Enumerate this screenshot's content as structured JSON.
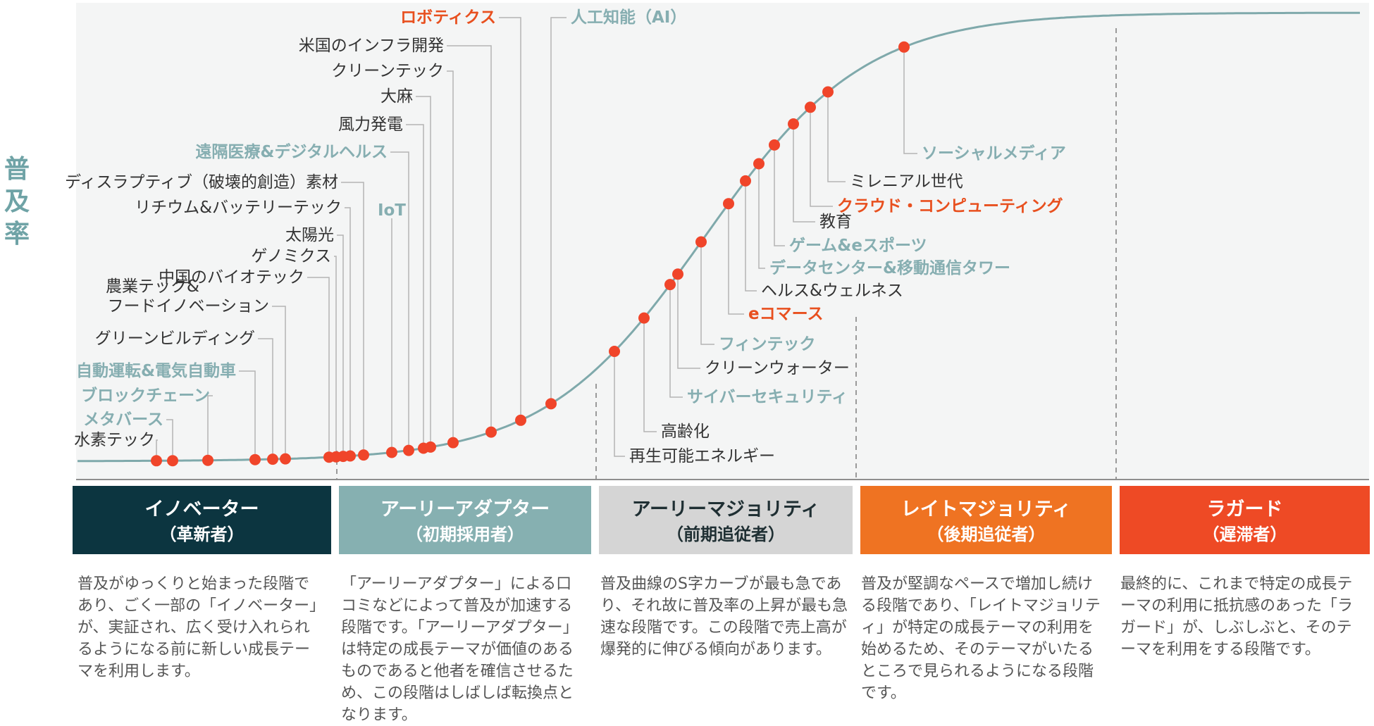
{
  "colors": {
    "curve": "#7fa9ab",
    "dot": "#f0452a",
    "accent_orange": "#e8501f",
    "muted_teal": "#86aeb1",
    "label_dark": "#333333",
    "leader": "#b4b4b4",
    "band_bg": "#f4f5f5",
    "stage_innovators": "#0c3540",
    "stage_early_adopters": "#86b0b1",
    "stage_early_majority": "#d5d5d5",
    "stage_late_majority": "#ef7322",
    "stage_laggards": "#ee4a25"
  },
  "y_axis_label": [
    "普",
    "及",
    "率"
  ],
  "stages": [
    {
      "title": "イノベーター",
      "subtitle": "（革新者）",
      "description": "普及がゆっくりと始まった段階であり、ごく一部の「イノベーター」が、実証され、広く受け入れられるようになる前に新しい成長テーマを利用します。"
    },
    {
      "title": "アーリーアダプター",
      "subtitle": "（初期採用者）",
      "description": "「アーリーアダプター」による口コミなどによって普及が加速する段階です。「アーリーアダプター」は特定の成長テーマが価値のあるものであると他者を確信させるため、この段階はしばしば転換点となります。"
    },
    {
      "title": "アーリーマジョリティ",
      "subtitle": "（前期追従者）",
      "description": "普及曲線のS字カーブが最も急であり、それ故に普及率の上昇が最も急速な段階です。この段階で売上高が爆発的に伸びる傾向があります。"
    },
    {
      "title": "レイトマジョリティ",
      "subtitle": "（後期追従者）",
      "description": "普及が堅調なペースで増加し続ける段階であり、「レイトマジョリティ」が特定の成長テーマの利用を始めるため、そのテーマがいたるところで見られるようになる段階です。"
    },
    {
      "title": "ラガード",
      "subtitle": "（遅滞者）",
      "description": "最終的に、これまで特定の成長テーマの利用に抵抗感のあった「ラガード」が、しぶしぶと、そのテーマを利用をする段階です。"
    }
  ],
  "chart_data": {
    "type": "scatter",
    "title": "",
    "ylabel": "普及率",
    "stages": [
      "イノベーター",
      "アーリーアダプター",
      "アーリーマジョリティ",
      "レイトマジョリティ",
      "ラガード"
    ],
    "themes": [
      {
        "label": "水素テック",
        "stage": "イノベーター",
        "style": "dark"
      },
      {
        "label": "メタバース",
        "stage": "イノベーター",
        "style": "teal"
      },
      {
        "label": "ブロックチェーン",
        "stage": "イノベーター",
        "style": "teal"
      },
      {
        "label": "自動運転&電気自動車",
        "stage": "イノベーター",
        "style": "teal"
      },
      {
        "label": "グリーンビルディング",
        "stage": "イノベーター",
        "style": "dark"
      },
      {
        "label": "農業テック&フードイノベーション",
        "stage": "イノベーター",
        "style": "dark"
      },
      {
        "label": "中国のバイオテック",
        "stage": "イノベーター",
        "style": "dark"
      },
      {
        "label": "ゲノミクス",
        "stage": "イノベーター",
        "style": "dark"
      },
      {
        "label": "太陽光",
        "stage": "イノベーター",
        "style": "dark"
      },
      {
        "label": "リチウム&バッテリーテック",
        "stage": "アーリーアダプター",
        "style": "dark"
      },
      {
        "label": "ディスラプティブ（破壊的創造）素材",
        "stage": "アーリーアダプター",
        "style": "dark"
      },
      {
        "label": "IoT",
        "stage": "アーリーアダプター",
        "style": "teal"
      },
      {
        "label": "遠隔医療&デジタルヘルス",
        "stage": "アーリーアダプター",
        "style": "teal"
      },
      {
        "label": "風力発電",
        "stage": "アーリーアダプター",
        "style": "dark"
      },
      {
        "label": "大麻",
        "stage": "アーリーアダプター",
        "style": "dark"
      },
      {
        "label": "クリーンテック",
        "stage": "アーリーアダプター",
        "style": "dark"
      },
      {
        "label": "米国のインフラ開発",
        "stage": "アーリーアダプター",
        "style": "dark"
      },
      {
        "label": "ロボティクス",
        "stage": "アーリーアダプター",
        "style": "orange"
      },
      {
        "label": "人工知能（AI）",
        "stage": "アーリーアダプター",
        "style": "teal"
      },
      {
        "label": "再生可能エネルギー",
        "stage": "アーリーマジョリティ",
        "style": "dark"
      },
      {
        "label": "高齢化",
        "stage": "アーリーマジョリティ",
        "style": "dark"
      },
      {
        "label": "サイバーセキュリティ",
        "stage": "アーリーマジョリティ",
        "style": "teal"
      },
      {
        "label": "クリーンウォーター",
        "stage": "アーリーマジョリティ",
        "style": "dark"
      },
      {
        "label": "フィンテック",
        "stage": "アーリーマジョリティ",
        "style": "teal"
      },
      {
        "label": "eコマース",
        "stage": "アーリーマジョリティ",
        "style": "orange"
      },
      {
        "label": "ヘルス&ウェルネス",
        "stage": "アーリーマジョリティ",
        "style": "dark"
      },
      {
        "label": "データセンター&移動通信タワー",
        "stage": "アーリーマジョリティ",
        "style": "teal"
      },
      {
        "label": "ゲーム&eスポーツ",
        "stage": "アーリーマジョリティ",
        "style": "teal"
      },
      {
        "label": "教育",
        "stage": "アーリーマジョリティ",
        "style": "dark"
      },
      {
        "label": "クラウド・コンピューティング",
        "stage": "アーリーマジョリティ",
        "style": "orange"
      },
      {
        "label": "ミレニアル世代",
        "stage": "アーリーマジョリティ",
        "style": "dark"
      },
      {
        "label": "ソーシャルメディア",
        "stage": "レイトマジョリティ",
        "style": "teal"
      }
    ]
  }
}
